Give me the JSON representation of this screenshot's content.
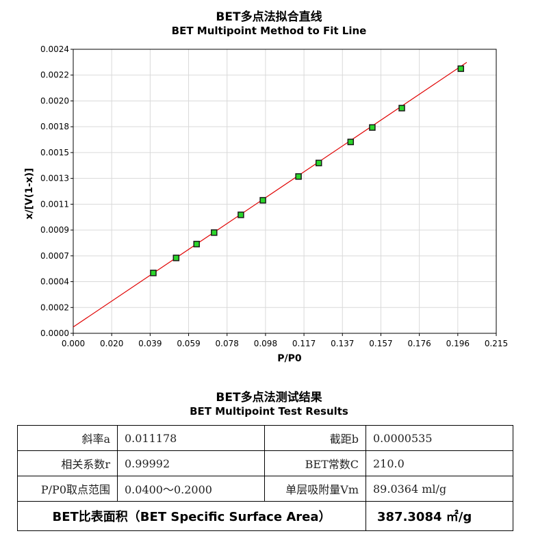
{
  "chart_title": {
    "cn": "BET多点法拟合直线",
    "en": "BET Multipoint Method to Fit Line"
  },
  "chart_data": {
    "type": "scatter",
    "xlabel": "P/P0",
    "ylabel": "x/[V(1-x)]",
    "xlim": [
      0,
      0.215
    ],
    "ylim": [
      0,
      0.0024
    ],
    "x_ticks": [
      "0.000",
      "0.020",
      "0.039",
      "0.059",
      "0.078",
      "0.098",
      "0.117",
      "0.137",
      "0.157",
      "0.176",
      "0.196",
      "0.215"
    ],
    "y_ticks": [
      "0.0000",
      "0.0002",
      "0.0004",
      "0.0007",
      "0.0009",
      "0.0011",
      "0.0013",
      "0.0015",
      "0.0018",
      "0.0020",
      "0.0022",
      "0.0024"
    ],
    "grid": true,
    "points": [
      {
        "x": 0.0407,
        "y": 0.00051
      },
      {
        "x": 0.0523,
        "y": 0.000637
      },
      {
        "x": 0.0627,
        "y": 0.000754
      },
      {
        "x": 0.0716,
        "y": 0.000851
      },
      {
        "x": 0.0852,
        "y": 0.001001
      },
      {
        "x": 0.0964,
        "y": 0.001124
      },
      {
        "x": 0.1145,
        "y": 0.001325
      },
      {
        "x": 0.1248,
        "y": 0.001439
      },
      {
        "x": 0.141,
        "y": 0.001617
      },
      {
        "x": 0.152,
        "y": 0.001739
      },
      {
        "x": 0.167,
        "y": 0.001903
      },
      {
        "x": 0.197,
        "y": 0.002236
      }
    ],
    "fit_line": {
      "slope": 0.011178,
      "intercept": 5.35e-05,
      "x_range": [
        0,
        0.2
      ]
    },
    "colors": {
      "point_fill": "#2bd62b",
      "point_border": "#1a1a1a",
      "line": "#e00000",
      "grid": "#d9d9d9"
    }
  },
  "results": {
    "title_cn": "BET多点法测试结果",
    "title_en": "BET Multipoint Test Results",
    "rows": [
      {
        "label1": "斜率a",
        "value1": "0.011178",
        "label2": "截距b",
        "value2": "0.0000535"
      },
      {
        "label1": "相关系数r",
        "value1": "0.99992",
        "label2": "BET常数C",
        "value2": "210.0"
      },
      {
        "label1": "P/P0取点范围",
        "value1": "0.0400～0.2000",
        "label2": "单层吸附量Vm",
        "value2": "89.0364 ml/g"
      }
    ],
    "surface_area_label": "BET比表面积（BET Specific Surface Area）",
    "surface_area_value": "387.3084 ㎡/g"
  }
}
